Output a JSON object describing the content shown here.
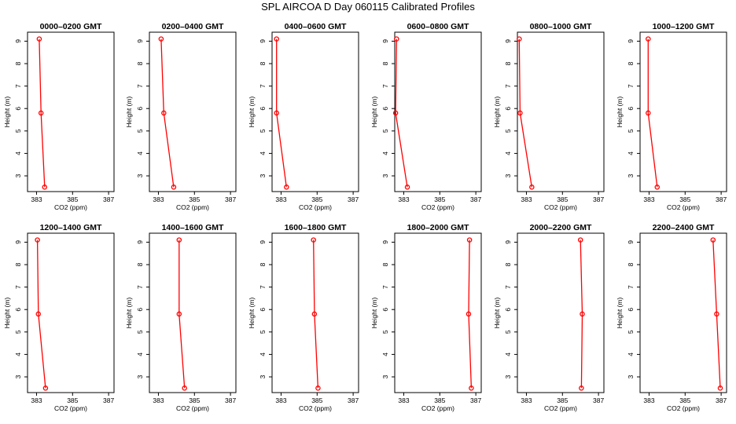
{
  "title": "SPL AIRCOA D  Day 060115  Calibrated Profiles",
  "colors": {
    "series": "#ff0000",
    "axes": "#000000",
    "background": "#ffffff"
  },
  "chart_data": [
    {
      "type": "line",
      "title": "0000–0200 GMT",
      "xlabel": "CO2 (ppm)",
      "ylabel": "Height (m)",
      "xlim": [
        382.5,
        387.3
      ],
      "ylim": [
        2.3,
        9.4
      ],
      "xticks": [
        383,
        385,
        387
      ],
      "xtick_labels": [
        "383",
        "385",
        "387"
      ],
      "yticks": [
        3,
        4,
        5,
        6,
        7,
        8,
        9
      ],
      "grid": false,
      "points": [
        {
          "x": 383.15,
          "y": 9.1
        },
        {
          "x": 383.25,
          "y": 5.8
        },
        {
          "x": 383.45,
          "y": 2.5
        }
      ]
    },
    {
      "type": "line",
      "title": "0200–0400 GMT",
      "xlabel": "CO2 (ppm)",
      "ylabel": "Height (m)",
      "xlim": [
        382.5,
        387.3
      ],
      "ylim": [
        2.3,
        9.4
      ],
      "xticks": [
        383,
        385,
        387
      ],
      "xtick_labels": [
        "383",
        "385",
        "387"
      ],
      "yticks": [
        3,
        4,
        5,
        6,
        7,
        8,
        9
      ],
      "grid": false,
      "points": [
        {
          "x": 383.15,
          "y": 9.1
        },
        {
          "x": 383.3,
          "y": 5.8
        },
        {
          "x": 383.85,
          "y": 2.5
        }
      ]
    },
    {
      "type": "line",
      "title": "0400–0600 GMT",
      "xlabel": "CO2 (ppm)",
      "ylabel": "Height (m)",
      "xlim": [
        382.5,
        387.3
      ],
      "ylim": [
        2.3,
        9.4
      ],
      "xticks": [
        383,
        385,
        387
      ],
      "xtick_labels": [
        "383",
        "385",
        "387"
      ],
      "yticks": [
        3,
        4,
        5,
        6,
        7,
        8,
        9
      ],
      "grid": false,
      "points": [
        {
          "x": 382.75,
          "y": 9.1
        },
        {
          "x": 382.75,
          "y": 5.8
        },
        {
          "x": 383.3,
          "y": 2.5
        }
      ]
    },
    {
      "type": "line",
      "title": "0600–0800 GMT",
      "xlabel": "CO2 (ppm)",
      "ylabel": "Height (m)",
      "xlim": [
        382.5,
        387.3
      ],
      "ylim": [
        2.3,
        9.4
      ],
      "xticks": [
        383,
        385,
        387
      ],
      "xtick_labels": [
        "383",
        "385",
        "387"
      ],
      "yticks": [
        3,
        4,
        5,
        6,
        7,
        8,
        9
      ],
      "grid": false,
      "points": [
        {
          "x": 382.6,
          "y": 9.1
        },
        {
          "x": 382.55,
          "y": 5.8
        },
        {
          "x": 383.2,
          "y": 2.5
        }
      ]
    },
    {
      "type": "line",
      "title": "0800–1000 GMT",
      "xlabel": "CO2 (ppm)",
      "ylabel": "Height (m)",
      "xlim": [
        382.5,
        387.3
      ],
      "ylim": [
        2.3,
        9.4
      ],
      "xticks": [
        383,
        385,
        387
      ],
      "xtick_labels": [
        "383",
        "385",
        "387"
      ],
      "yticks": [
        3,
        4,
        5,
        6,
        7,
        8,
        9
      ],
      "grid": false,
      "points": [
        {
          "x": 382.6,
          "y": 9.1
        },
        {
          "x": 382.65,
          "y": 5.8
        },
        {
          "x": 383.3,
          "y": 2.5
        }
      ]
    },
    {
      "type": "line",
      "title": "1000–1200 GMT",
      "xlabel": "CO2 (ppm)",
      "ylabel": "Height (m)",
      "xlim": [
        382.5,
        387.3
      ],
      "ylim": [
        2.3,
        9.4
      ],
      "xticks": [
        383,
        385,
        387
      ],
      "xtick_labels": [
        "383",
        "385",
        "387"
      ],
      "yticks": [
        3,
        4,
        5,
        6,
        7,
        8,
        9
      ],
      "grid": false,
      "points": [
        {
          "x": 382.95,
          "y": 9.1
        },
        {
          "x": 382.95,
          "y": 5.8
        },
        {
          "x": 383.45,
          "y": 2.5
        }
      ]
    },
    {
      "type": "line",
      "title": "1200–1400 GMT",
      "xlabel": "CO2 (ppm)",
      "ylabel": "Height (m)",
      "xlim": [
        382.5,
        387.3
      ],
      "ylim": [
        2.3,
        9.4
      ],
      "xticks": [
        383,
        385,
        387
      ],
      "xtick_labels": [
        "383",
        "385",
        "387"
      ],
      "yticks": [
        3,
        4,
        5,
        6,
        7,
        8,
        9
      ],
      "grid": false,
      "points": [
        {
          "x": 383.05,
          "y": 9.1
        },
        {
          "x": 383.1,
          "y": 5.8
        },
        {
          "x": 383.5,
          "y": 2.5
        }
      ]
    },
    {
      "type": "line",
      "title": "1400–1600 GMT",
      "xlabel": "CO2 (ppm)",
      "ylabel": "Height (m)",
      "xlim": [
        382.5,
        387.3
      ],
      "ylim": [
        2.3,
        9.4
      ],
      "xticks": [
        383,
        385,
        387
      ],
      "xtick_labels": [
        "383",
        "385",
        "387"
      ],
      "yticks": [
        3,
        4,
        5,
        6,
        7,
        8,
        9
      ],
      "grid": false,
      "points": [
        {
          "x": 384.15,
          "y": 9.1
        },
        {
          "x": 384.15,
          "y": 5.8
        },
        {
          "x": 384.45,
          "y": 2.5
        }
      ]
    },
    {
      "type": "line",
      "title": "1600–1800 GMT",
      "xlabel": "CO2 (ppm)",
      "ylabel": "Height (m)",
      "xlim": [
        382.5,
        387.3
      ],
      "ylim": [
        2.3,
        9.4
      ],
      "xticks": [
        383,
        385,
        387
      ],
      "xtick_labels": [
        "383",
        "385",
        "387"
      ],
      "yticks": [
        3,
        4,
        5,
        6,
        7,
        8,
        9
      ],
      "grid": false,
      "points": [
        {
          "x": 384.8,
          "y": 9.1
        },
        {
          "x": 384.85,
          "y": 5.8
        },
        {
          "x": 385.05,
          "y": 2.5
        }
      ]
    },
    {
      "type": "line",
      "title": "1800–2000 GMT",
      "xlabel": "CO2 (ppm)",
      "ylabel": "Height (m)",
      "xlim": [
        382.5,
        387.3
      ],
      "ylim": [
        2.3,
        9.4
      ],
      "xticks": [
        383,
        385,
        387
      ],
      "xtick_labels": [
        "383",
        "385",
        "387"
      ],
      "yticks": [
        3,
        4,
        5,
        6,
        7,
        8,
        9
      ],
      "grid": false,
      "points": [
        {
          "x": 386.65,
          "y": 9.1
        },
        {
          "x": 386.6,
          "y": 5.8
        },
        {
          "x": 386.75,
          "y": 2.5
        }
      ]
    },
    {
      "type": "line",
      "title": "2000–2200 GMT",
      "xlabel": "CO2 (ppm)",
      "ylabel": "Height (m)",
      "xlim": [
        382.5,
        387.3
      ],
      "ylim": [
        2.3,
        9.4
      ],
      "xticks": [
        383,
        385,
        387
      ],
      "xtick_labels": [
        "383",
        "385",
        "387"
      ],
      "yticks": [
        3,
        4,
        5,
        6,
        7,
        8,
        9
      ],
      "grid": false,
      "points": [
        {
          "x": 386.0,
          "y": 9.1
        },
        {
          "x": 386.1,
          "y": 5.8
        },
        {
          "x": 386.05,
          "y": 2.5
        }
      ]
    },
    {
      "type": "line",
      "title": "2200–2400 GMT",
      "xlabel": "CO2 (ppm)",
      "ylabel": "Height (m)",
      "xlim": [
        382.5,
        387.3
      ],
      "ylim": [
        2.3,
        9.4
      ],
      "xticks": [
        383,
        385,
        387
      ],
      "xtick_labels": [
        "383",
        "385",
        "387"
      ],
      "yticks": [
        3,
        4,
        5,
        6,
        7,
        8,
        9
      ],
      "grid": false,
      "points": [
        {
          "x": 386.55,
          "y": 9.1
        },
        {
          "x": 386.75,
          "y": 5.8
        },
        {
          "x": 386.95,
          "y": 2.5
        }
      ]
    }
  ]
}
